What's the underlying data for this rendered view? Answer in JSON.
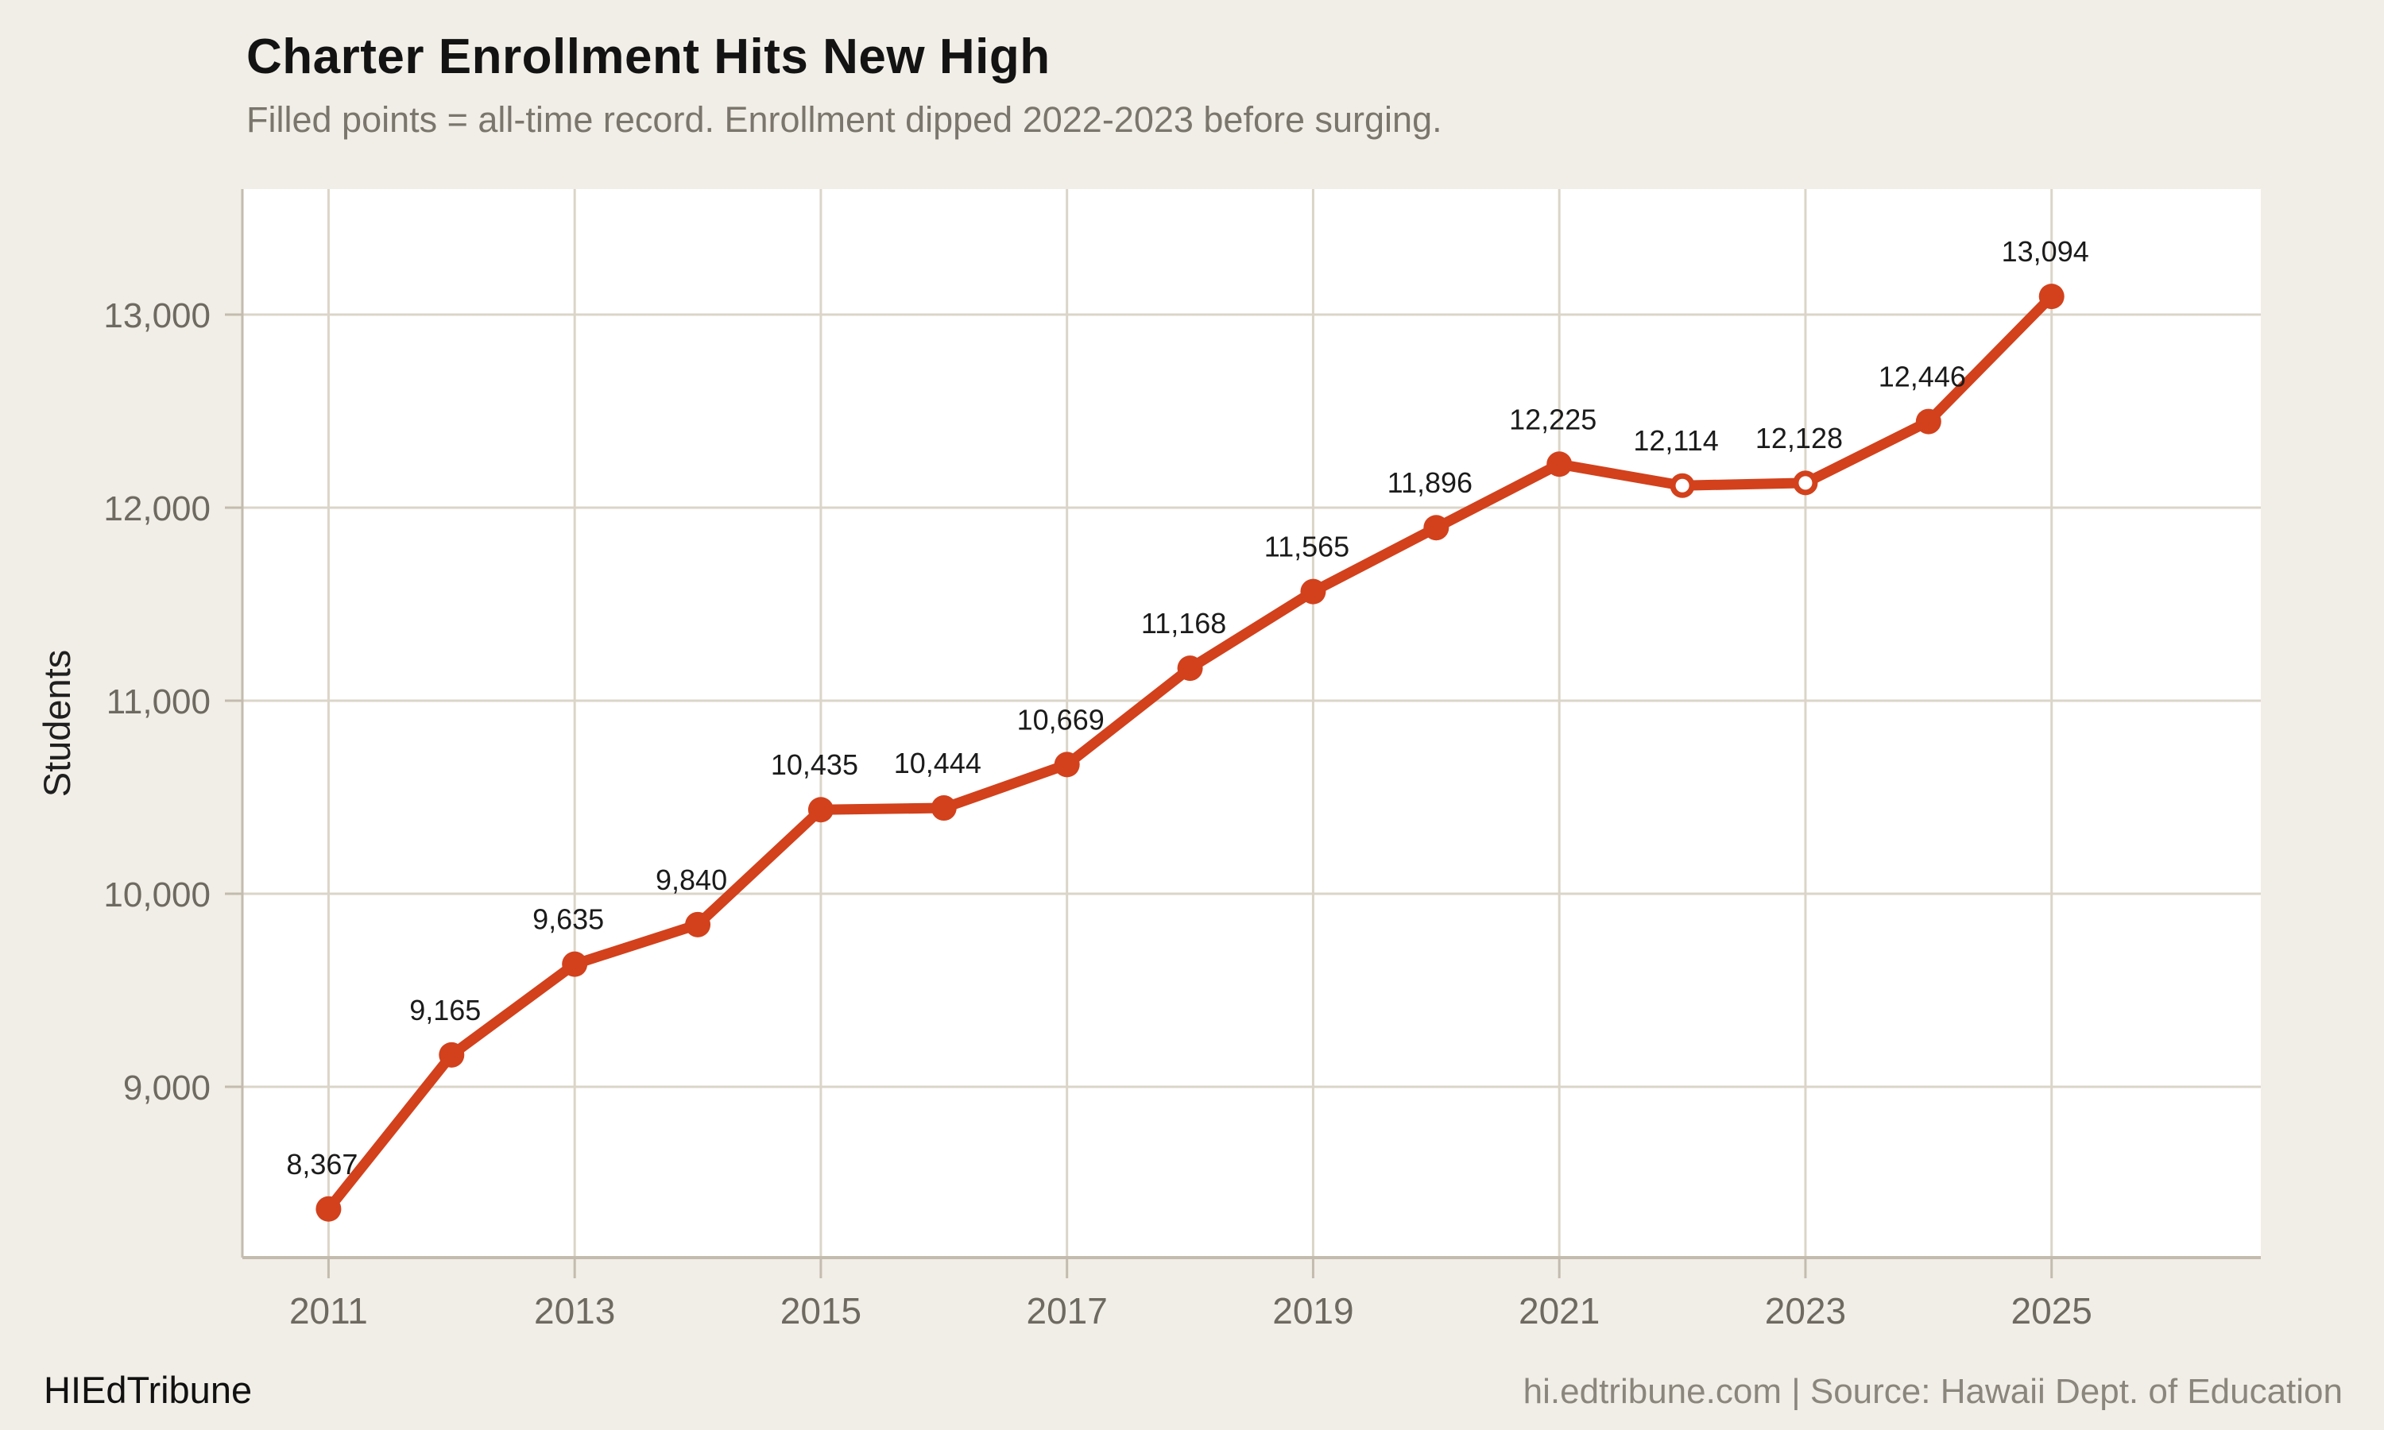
{
  "header": {
    "title": "Charter Enrollment Hits New High",
    "subtitle": "Filled points = all-time record. Enrollment dipped 2022-2023 before surging."
  },
  "footer": {
    "brand": "HIEdTribune",
    "source": "hi.edtribune.com | Source: Hawaii Dept. of Education"
  },
  "chart_data": {
    "type": "line",
    "title": "Charter Enrollment Hits New High",
    "subtitle": "Filled points = all-time record. Enrollment dipped 2022-2023 before surging.",
    "xlabel": "",
    "ylabel": "Students",
    "x": [
      2011,
      2012,
      2013,
      2014,
      2015,
      2016,
      2017,
      2018,
      2019,
      2020,
      2021,
      2022,
      2023,
      2024,
      2025
    ],
    "values": [
      8367,
      9165,
      9635,
      9840,
      10435,
      10444,
      10669,
      11168,
      11565,
      11896,
      12225,
      12114,
      12128,
      12446,
      13094
    ],
    "point_labels": [
      "8,367",
      "9,165",
      "9,635",
      "9,840",
      "10,435",
      "10,444",
      "10,669",
      "11,168",
      "11,565",
      "11,896",
      "12,225",
      "12,114",
      "12,128",
      "12,446",
      "13,094"
    ],
    "record_point": [
      true,
      true,
      true,
      true,
      true,
      true,
      true,
      true,
      true,
      true,
      true,
      false,
      false,
      true,
      true
    ],
    "x_ticks": [
      2011,
      2013,
      2015,
      2017,
      2019,
      2021,
      2023,
      2025
    ],
    "x_tick_labels": [
      "2011",
      "2013",
      "2015",
      "2017",
      "2019",
      "2021",
      "2023",
      "2025"
    ],
    "y_ticks": [
      9000,
      10000,
      11000,
      12000,
      13000
    ],
    "y_tick_labels": [
      "9,000",
      "10,000",
      "11,000",
      "12,000",
      "13,000"
    ],
    "xlim": [
      2010.3,
      2026.7
    ],
    "ylim": [
      8115,
      13650
    ],
    "grid": "on",
    "legend": "none",
    "colors": {
      "line": "#d2411c",
      "marker_fill": "#d2411c",
      "open_marker_fill": "#ffffff",
      "background": "#f1eee7",
      "plot_background": "#ffffff",
      "gridline": "#dbd5c9",
      "axis_line": "#c3bcae",
      "tick_text": "#6e6a62",
      "value_label_text": "#1b1b1b",
      "axis_title_text": "#1f1f1f"
    }
  }
}
